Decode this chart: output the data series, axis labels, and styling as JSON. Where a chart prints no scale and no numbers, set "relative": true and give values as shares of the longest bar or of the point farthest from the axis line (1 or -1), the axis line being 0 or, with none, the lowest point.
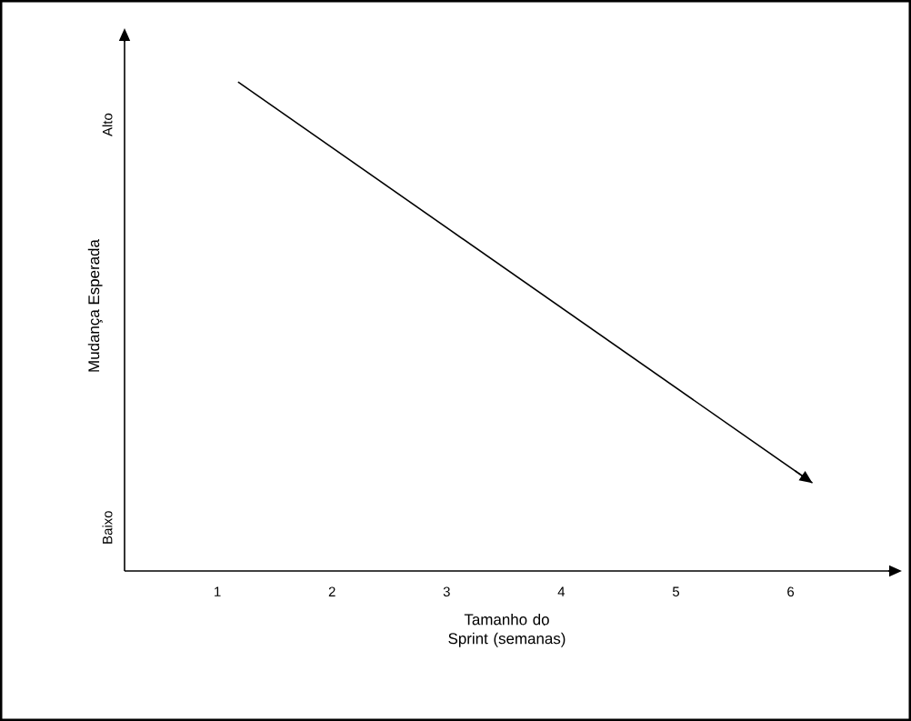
{
  "chart_data": {
    "type": "line",
    "xlabel": "Tamanho do Sprint (semanas)",
    "ylabel": "Mudança Esperada",
    "relative": true,
    "xlim": [
      0.19,
      6.86
    ],
    "xticks": [
      1,
      2,
      3,
      4,
      5,
      6
    ],
    "annotations": [
      "Baixo",
      "Alto"
    ],
    "marker": "none",
    "line_style": "solid",
    "series": [
      {
        "color": "#000000",
        "x": [
          1.18,
          6.19
        ],
        "values": [
          1,
          0.18
        ]
      }
    ]
  }
}
